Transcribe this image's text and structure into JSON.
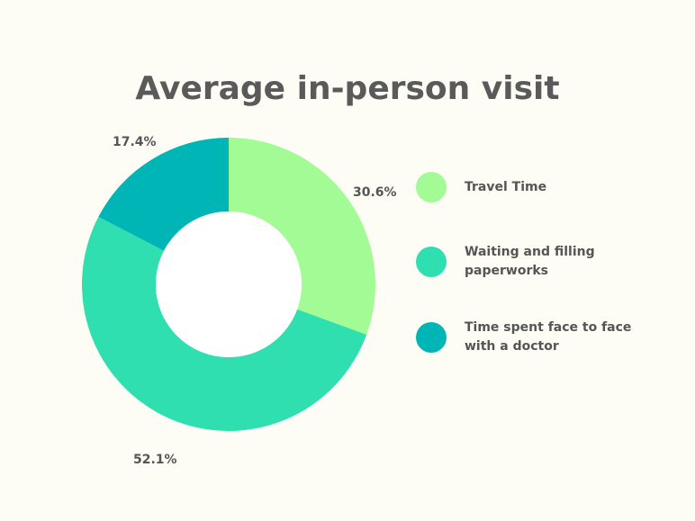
{
  "chart_data": {
    "type": "pie",
    "title": "Average in-person visit",
    "categories": [
      "Travel Time",
      "Waiting and filling paperworks",
      "Time spent face to face with a doctor"
    ],
    "values": [
      30.6,
      52.1,
      17.4
    ],
    "value_labels": [
      "30.6%",
      "52.1%",
      "17.4%"
    ],
    "unit": "%",
    "donut": true,
    "colors": [
      "#a2fb94",
      "#2fdfb0",
      "#00b5b5"
    ],
    "legend": {
      "placement": "right",
      "entries": [
        "Travel Time",
        "Waiting and filling paperworks",
        "Time spent face to face with a doctor"
      ]
    }
  }
}
